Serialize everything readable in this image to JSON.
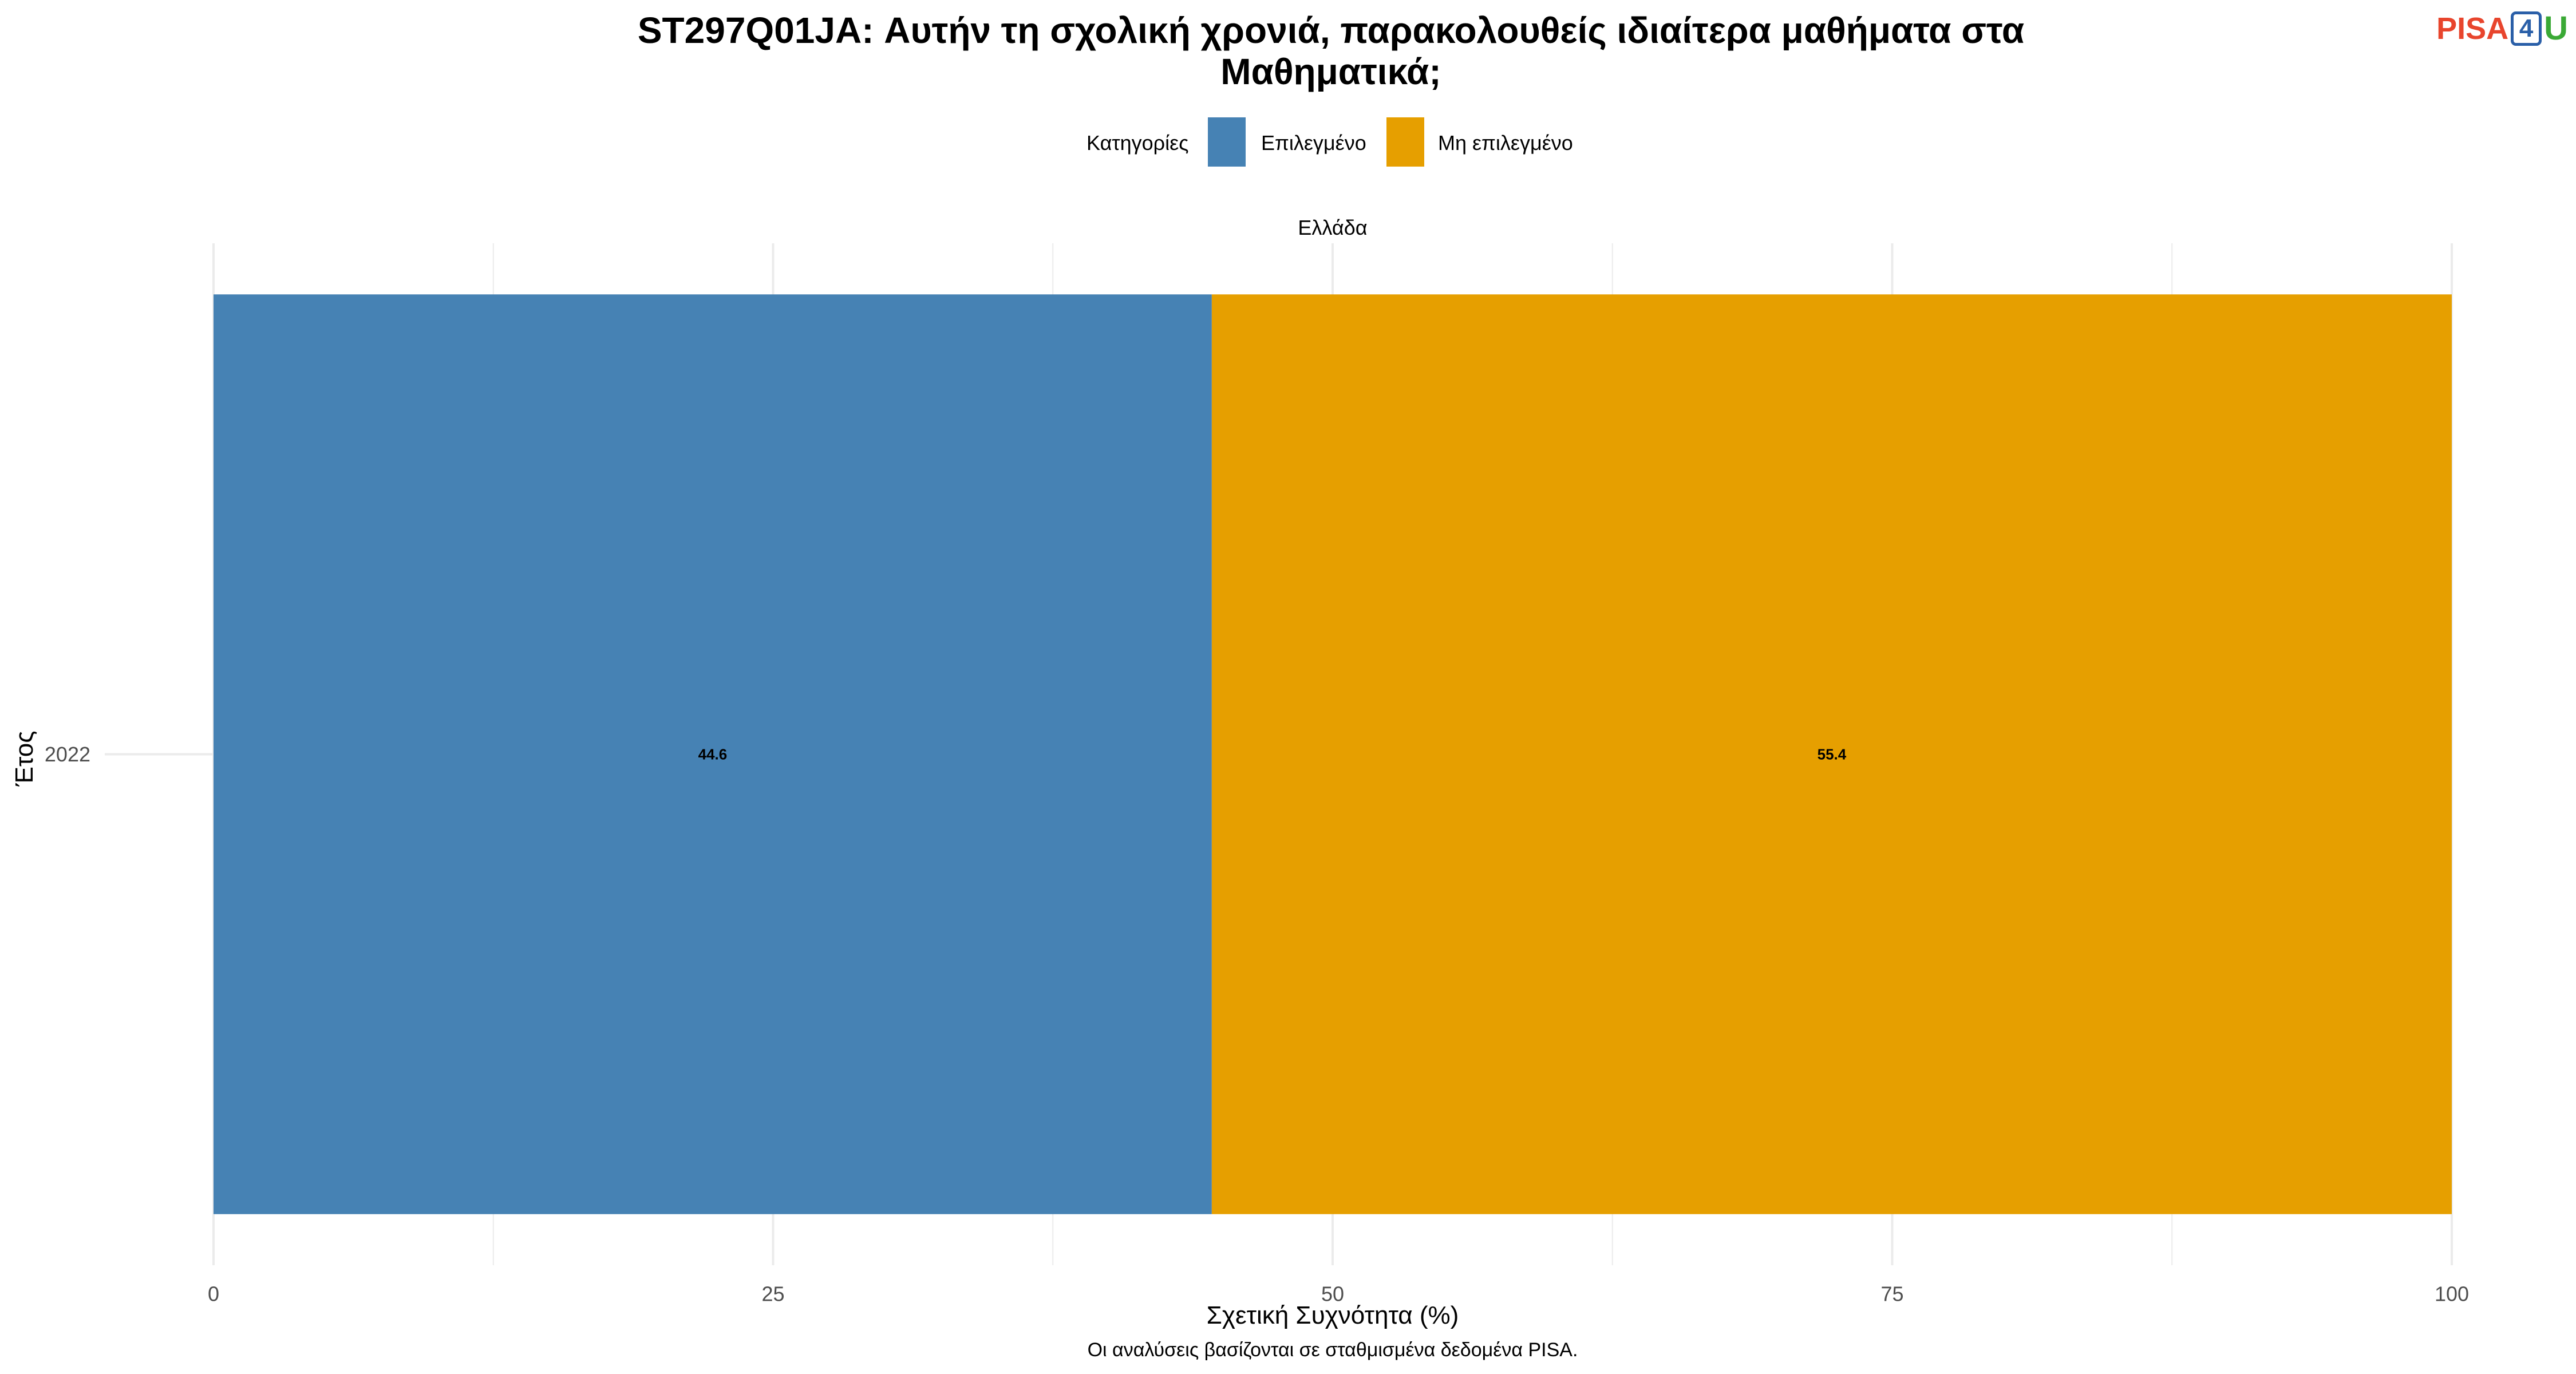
{
  "chart_data": {
    "type": "bar",
    "orientation": "horizontal",
    "stacked": true,
    "title": "ST297Q01JA: Αυτήν τη σχολική χρονιά, παρακολουθείς ιδιαίτερα μαθήματα στα Μαθηματικά;",
    "title_lines": [
      "ST297Q01JA: Αυτήν τη σχολική χρονιά, παρακολουθείς ιδιαίτερα μαθήματα στα",
      "Μαθηματικά;"
    ],
    "facet": "Ελλάδα",
    "categories": [
      "2022"
    ],
    "series": [
      {
        "name": "Επιλεγμένο",
        "values": [
          44.6
        ],
        "color": "#4682B4"
      },
      {
        "name": "Μη επιλεγμένο",
        "values": [
          55.4
        ],
        "color": "#E69F00"
      }
    ],
    "data_labels": [
      [
        "44.6"
      ],
      [
        "55.4"
      ]
    ],
    "xlabel": "Σχετική Συχνότητα (%)",
    "ylabel": "Έτος",
    "xlim": [
      0,
      100
    ],
    "xticks": [
      0,
      25,
      50,
      75,
      100
    ],
    "grid": true,
    "legend": {
      "title": "Κατηγορίες",
      "placement": "top"
    },
    "caption": "Οι αναλύσεις βασίζονται σε σταθμισμένα δεδομένα PISA."
  },
  "logo": {
    "pisa": "PISA",
    "four": "4",
    "u": "U"
  },
  "colors": {
    "grid": "#EBEBEB",
    "tick_text": "#4D4D4D"
  }
}
